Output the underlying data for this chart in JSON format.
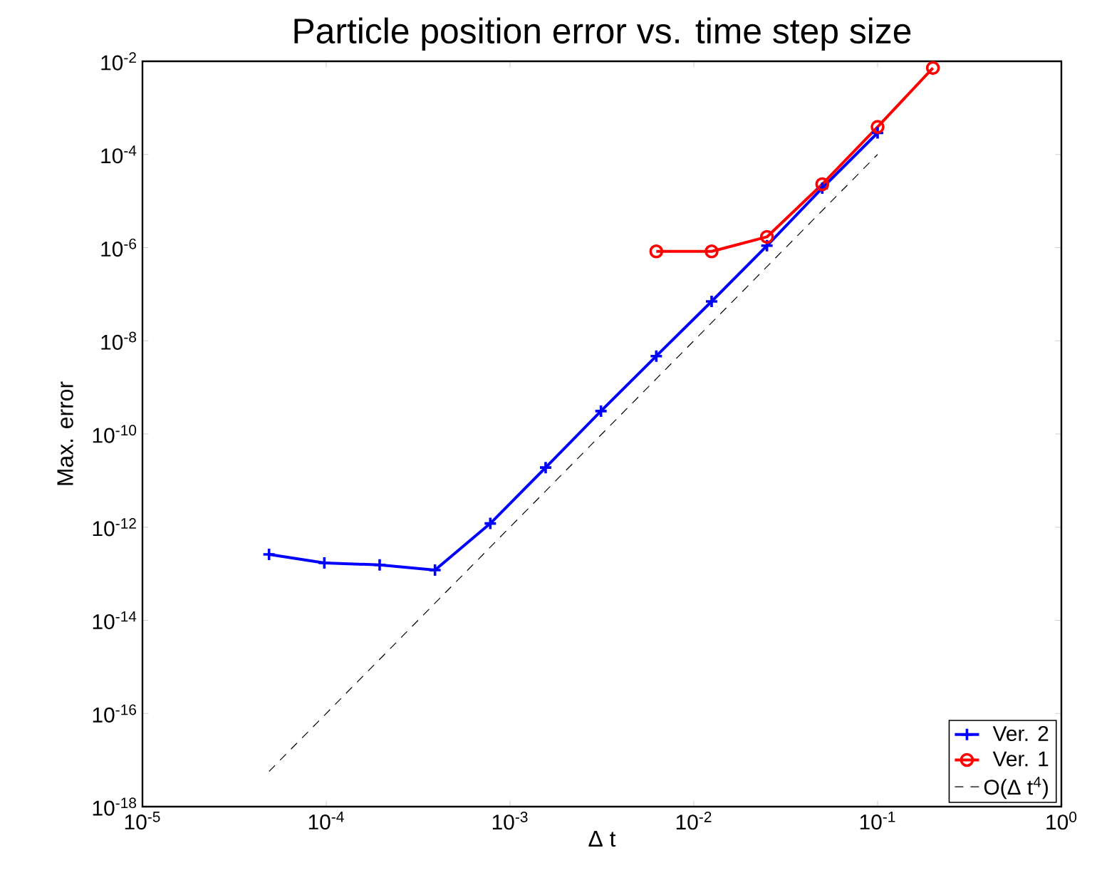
{
  "chart_data": {
    "type": "line",
    "title": "Particle position error vs. time step size",
    "xlabel": "Δ t",
    "ylabel": "Max. error",
    "log": "xy",
    "grid": false,
    "legend": "bottom right",
    "xlim": [
      1e-05,
      1
    ],
    "ylim": [
      1e-18,
      0.01
    ],
    "xticks": [
      {
        "value": 1e-05,
        "label": "10$^{-5}$"
      },
      {
        "value": 0.0001,
        "label": "10$^{-4}$"
      },
      {
        "value": 0.001,
        "label": "10$^{-3}$"
      },
      {
        "value": 0.01,
        "label": "10$^{-2}$"
      },
      {
        "value": 0.1,
        "label": "10$^{-1}$"
      },
      {
        "value": 1,
        "label": "10$^{0}$"
      }
    ],
    "yticks": [
      {
        "value": 1e-18,
        "label": "10$^{-18}$"
      },
      {
        "value": 1e-16,
        "label": "10$^{-16}$"
      },
      {
        "value": 1e-14,
        "label": "10$^{-14}$"
      },
      {
        "value": 1e-12,
        "label": "10$^{-12}$"
      },
      {
        "value": 1e-10,
        "label": "10$^{-10}$"
      },
      {
        "value": 1e-08,
        "label": "10$^{-8}$"
      },
      {
        "value": 1e-06,
        "label": "10$^{-6}$"
      },
      {
        "value": 0.0001,
        "label": "10$^{-4}$"
      },
      {
        "value": 0.01,
        "label": "10$^{-2}$"
      }
    ],
    "series": [
      {
        "name": "Ver. 2",
        "color": "#0000ff",
        "marker": "cross",
        "line_style": "solid",
        "x": [
          0.1,
          0.05,
          0.025,
          0.0125,
          0.00625,
          0.003125,
          0.0015625,
          0.00078125,
          0.000390625,
          0.0001953125,
          9.765625e-05,
          4.8828125e-05
        ],
        "values": [
          0.00029,
          1.9e-05,
          1.1e-06,
          7e-08,
          4.7e-09,
          3.1e-10,
          1.9e-11,
          1.2e-12,
          1.2e-13,
          1.55e-13,
          1.7e-13,
          2.6e-13
        ]
      },
      {
        "name": "Ver. 1",
        "color": "#ff0000",
        "marker": "circle",
        "line_style": "solid",
        "x": [
          0.2,
          0.1,
          0.05,
          0.025,
          0.0125,
          0.00625
        ],
        "values": [
          0.0072,
          0.00039,
          2.3e-05,
          1.7e-06,
          8.3e-07,
          8.3e-07
        ]
      },
      {
        "name": "O(Δ t$^{4}$)",
        "color": "#000000",
        "marker": "none",
        "line_style": "dashed",
        "x": [
          4.8828125e-05,
          0.1
        ],
        "values": [
          5.7e-18,
          0.0001
        ]
      }
    ]
  }
}
